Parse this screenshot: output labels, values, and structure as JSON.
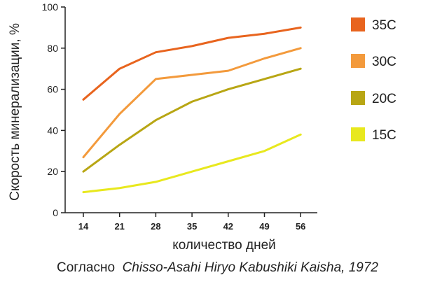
{
  "chart_data": {
    "type": "line",
    "title": "",
    "xlabel": "количество дней",
    "ylabel": "Скорость минерализации, %",
    "x": [
      14,
      21,
      28,
      35,
      42,
      49,
      56
    ],
    "ylim": [
      0,
      100
    ],
    "yticks": [
      0,
      20,
      40,
      60,
      80,
      100
    ],
    "grid": false,
    "legend_position": "right",
    "series": [
      {
        "name": "35C",
        "color": "#e8641e",
        "values": [
          55,
          70,
          78,
          81,
          85,
          87,
          90
        ]
      },
      {
        "name": "30C",
        "color": "#f39a3c",
        "values": [
          27,
          48,
          65,
          67,
          69,
          75,
          80
        ]
      },
      {
        "name": "20C",
        "color": "#b8a614",
        "values": [
          20,
          33,
          45,
          54,
          60,
          65,
          70
        ]
      },
      {
        "name": "15C",
        "color": "#e8e81e",
        "values": [
          10,
          12,
          15,
          20,
          25,
          30,
          38
        ]
      }
    ]
  },
  "source": {
    "prefix": "Согласно",
    "citation": "Chisso-Asahi Hiryo Kabushiki Kaisha, 1972"
  }
}
